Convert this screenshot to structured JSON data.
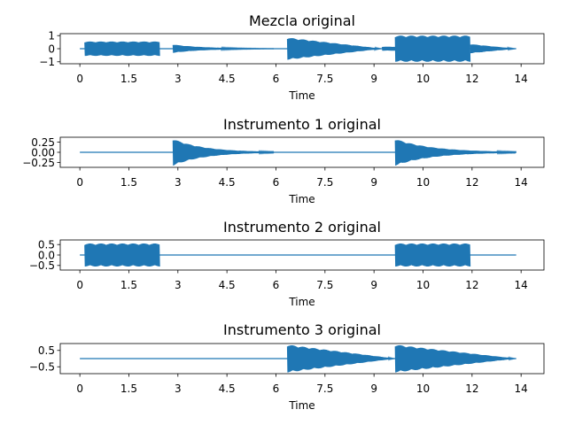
{
  "chart_data": [
    {
      "type": "line",
      "title": "Mezcla original",
      "xlabel": "Time",
      "ylabel": "",
      "xlim": [
        -0.6,
        14.2
      ],
      "ylim": [
        -1.15,
        1.15
      ],
      "x_ticks": [
        0,
        1.5,
        3,
        4.5,
        6,
        7.5,
        9,
        10.5,
        12,
        13.5
      ],
      "x_tick_labels": [
        "0",
        "1.5",
        "3",
        "4.5",
        "6",
        "7.5",
        "9",
        "10",
        "12",
        "14"
      ],
      "y_ticks": [
        1,
        0,
        -1
      ],
      "y_tick_labels": [
        "1",
        "0",
        "−1"
      ],
      "color": "#1f77b4",
      "segments": [
        {
          "start": 0.15,
          "end": 2.45,
          "amplitude": 0.55,
          "decay": "flat"
        },
        {
          "start": 2.85,
          "end": 5.95,
          "amplitude": 0.32,
          "decay": "exp"
        },
        {
          "start": 6.35,
          "end": 9.25,
          "amplitude": 0.85,
          "decay": "linear"
        },
        {
          "start": 9.25,
          "end": 9.65,
          "amplitude": 0.15,
          "decay": "flat"
        },
        {
          "start": 9.65,
          "end": 11.95,
          "amplitude": 1.0,
          "decay": "flat"
        },
        {
          "start": 11.95,
          "end": 13.35,
          "amplitude": 0.35,
          "decay": "linear"
        }
      ]
    },
    {
      "type": "line",
      "title": "Instrumento 1 original",
      "xlabel": "Time",
      "ylabel": "",
      "xlim": [
        -0.6,
        14.2
      ],
      "ylim": [
        -0.37,
        0.37
      ],
      "x_ticks": [
        0,
        1.5,
        3,
        4.5,
        6,
        7.5,
        9,
        10.5,
        12,
        13.5
      ],
      "x_tick_labels": [
        "0",
        "1.5",
        "3",
        "4.5",
        "6",
        "7.5",
        "9",
        "10",
        "12",
        "14"
      ],
      "y_ticks": [
        0.25,
        0,
        -0.25
      ],
      "y_tick_labels": [
        "0.25",
        "0.00",
        "−0.25"
      ],
      "color": "#1f77b4",
      "segments": [
        {
          "start": 2.85,
          "end": 5.95,
          "amplitude": 0.33,
          "decay": "exp"
        },
        {
          "start": 9.65,
          "end": 13.35,
          "amplitude": 0.33,
          "decay": "exp"
        }
      ]
    },
    {
      "type": "line",
      "title": "Instrumento 2 original",
      "xlabel": "Time",
      "ylabel": "",
      "xlim": [
        -0.6,
        14.2
      ],
      "ylim": [
        -0.72,
        0.72
      ],
      "x_ticks": [
        0,
        1.5,
        3,
        4.5,
        6,
        7.5,
        9,
        10.5,
        12,
        13.5
      ],
      "x_tick_labels": [
        "0",
        "1.5",
        "3",
        "4.5",
        "6",
        "7.5",
        "9",
        "10",
        "12",
        "14"
      ],
      "y_ticks": [
        0.5,
        0,
        -0.5
      ],
      "y_tick_labels": [
        "0.5",
        "0.0",
        "−0.5"
      ],
      "color": "#1f77b4",
      "segments": [
        {
          "start": 0.15,
          "end": 2.45,
          "amplitude": 0.55,
          "decay": "flat"
        },
        {
          "start": 9.65,
          "end": 11.95,
          "amplitude": 0.55,
          "decay": "flat"
        }
      ]
    },
    {
      "type": "line",
      "title": "Instrumento 3 original",
      "xlabel": "Time",
      "ylabel": "",
      "xlim": [
        -0.6,
        14.2
      ],
      "ylim": [
        -0.92,
        0.92
      ],
      "x_ticks": [
        0,
        1.5,
        3,
        4.5,
        6,
        7.5,
        9,
        10.5,
        12,
        13.5
      ],
      "x_tick_labels": [
        "0",
        "1.5",
        "3",
        "4.5",
        "6",
        "7.5",
        "9",
        "10",
        "12",
        "14"
      ],
      "y_ticks": [
        0.5,
        -0.5
      ],
      "y_tick_labels": [
        "0.5",
        "−0.5"
      ],
      "color": "#1f77b4",
      "segments": [
        {
          "start": 6.35,
          "end": 9.65,
          "amplitude": 0.85,
          "decay": "linear"
        },
        {
          "start": 9.65,
          "end": 13.35,
          "amplitude": 0.85,
          "decay": "linear"
        }
      ]
    }
  ]
}
